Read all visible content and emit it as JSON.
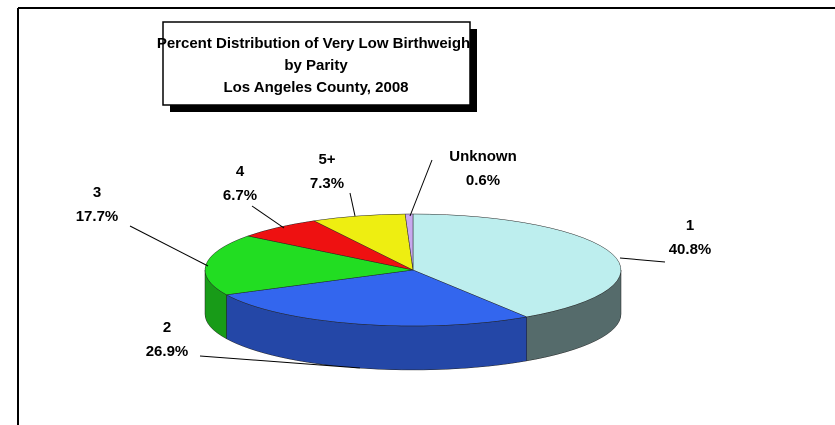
{
  "chart_data": {
    "type": "pie",
    "title": [
      "Percent Distribution of Very Low Birthweight",
      "by Parity",
      "Los Angeles County, 2008"
    ],
    "categories": [
      "1",
      "2",
      "3",
      "4",
      "5+",
      "Unknown"
    ],
    "values": [
      40.8,
      26.9,
      17.7,
      6.7,
      7.3,
      0.6
    ],
    "value_labels": [
      "40.8%",
      "26.9%",
      "17.7%",
      "6.7%",
      "7.3%",
      "0.6%"
    ],
    "colors": [
      "#bdeeee",
      "#3366ee",
      "#22dd22",
      "#ee1111",
      "#eeee11",
      "#c8a8ee"
    ]
  }
}
